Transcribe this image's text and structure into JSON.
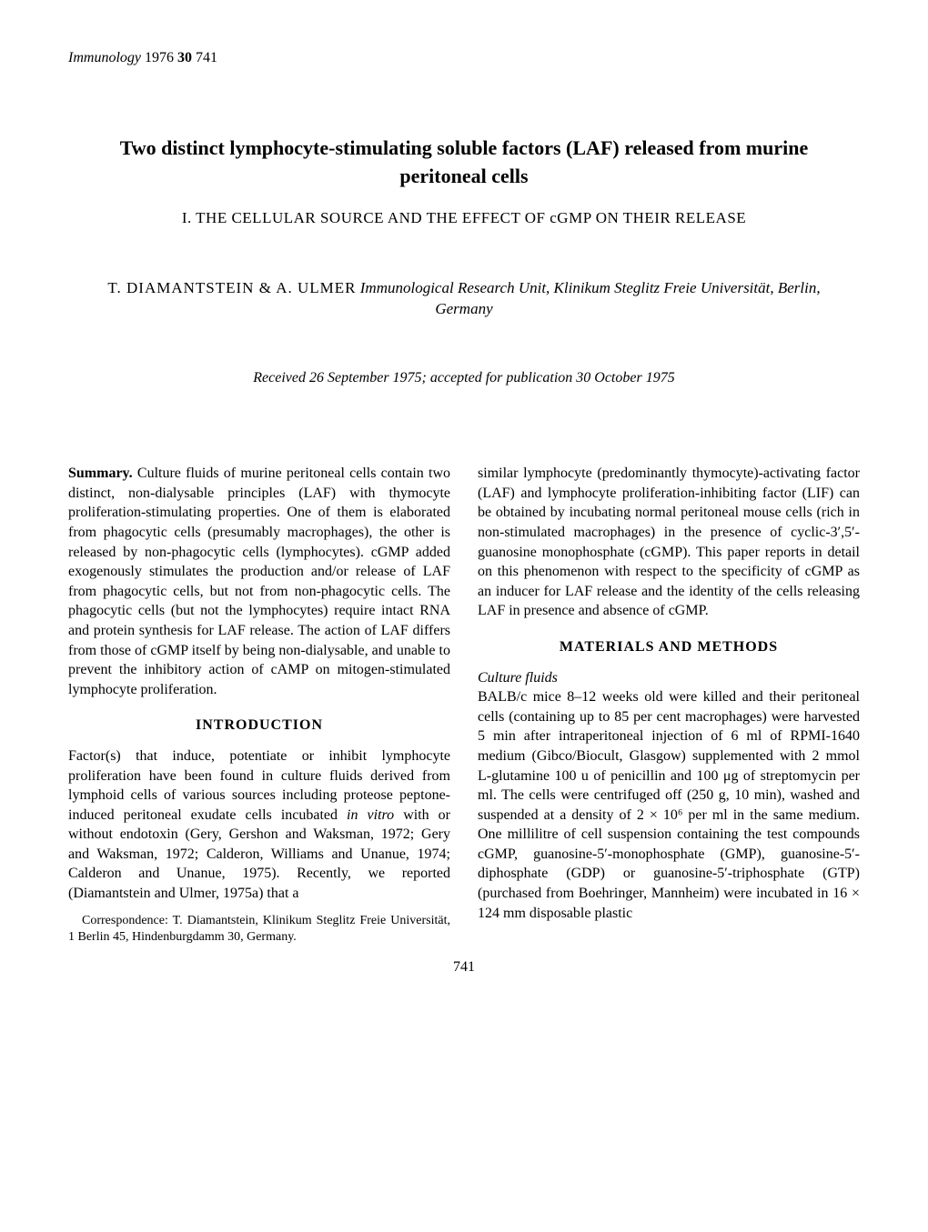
{
  "journal": {
    "name": "Immunology",
    "year": "1976",
    "volume": "30",
    "page": "741"
  },
  "title": "Two distinct lymphocyte-stimulating soluble factors (LAF) released from murine peritoneal cells",
  "subtitle": "I. THE CELLULAR SOURCE AND THE EFFECT OF cGMP ON THEIR RELEASE",
  "authors": "T. DIAMANTSTEIN & A. ULMER",
  "affiliation": "Immunological Research Unit, Klinikum Steglitz Freie Universität, Berlin, Germany",
  "dates": "Received 26 September 1975; accepted for publication 30 October 1975",
  "summary_label": "Summary.",
  "summary_text": " Culture fluids of murine peritoneal cells contain two distinct, non-dialysable principles (LAF) with thymocyte proliferation-stimulating properties. One of them is elaborated from phagocytic cells (presumably macrophages), the other is released by non-phagocytic cells (lymphocytes). cGMP added exogenously stimulates the production and/or release of LAF from phagocytic cells, but not from non-phagocytic cells. The phagocytic cells (but not the lymphocytes) require intact RNA and protein synthesis for LAF release. The action of LAF differs from those of cGMP itself by being non-dialysable, and unable to prevent the inhibitory action of cAMP on mitogen-stimulated lymphocyte proliferation.",
  "introduction_heading": "INTRODUCTION",
  "intro_text_1": "Factor(s) that induce, potentiate or inhibit lymphocyte proliferation have been found in culture fluids derived from lymphoid cells of various sources including proteose peptone-induced peritoneal exudate cells incubated ",
  "in_vitro": "in vitro",
  "intro_text_2": " with or without endotoxin (Gery, Gershon and Waksman, 1972; Gery and Waksman, 1972; Calderon, Williams and Unanue, 1974; Calderon and Unanue, 1975). Recently, we reported (Diamantstein and Ulmer, 1975a) that a",
  "correspondence": "Correspondence: T. Diamantstein, Klinikum Steglitz Freie Universität, 1 Berlin 45, Hindenburgdamm 30, Germany.",
  "col2_para1": "similar lymphocyte (predominantly thymocyte)-activating factor (LAF) and lymphocyte proliferation-inhibiting factor (LIF) can be obtained by incubating normal peritoneal mouse cells (rich in non-stimulated macrophages) in the presence of cyclic-3′,5′-guanosine monophosphate (cGMP). This paper reports in detail on this phenomenon with respect to the specificity of cGMP as an inducer for LAF release and the identity of the cells releasing LAF in presence and absence of cGMP.",
  "materials_heading": "MATERIALS AND METHODS",
  "culture_fluids_heading": "Culture fluids",
  "culture_fluids_text": "BALB/c mice 8–12 weeks old were killed and their peritoneal cells (containing up to 85 per cent macrophages) were harvested 5 min after intraperitoneal injection of 6 ml of RPMI-1640 medium (Gibco/Biocult, Glasgow) supplemented with 2 mmol L-glutamine 100 u of penicillin and 100 μg of streptomycin per ml. The cells were centrifuged off (250 g, 10 min), washed and suspended at a density of 2 × 10⁶ per ml in the same medium. One millilitre of cell suspension containing the test compounds cGMP, guanosine-5′-monophosphate (GMP), guanosine-5′-diphosphate (GDP) or guanosine-5′-triphosphate (GTP) (purchased from Boehringer, Mannheim) were incubated in 16 × 124 mm disposable plastic",
  "page_number": "741"
}
